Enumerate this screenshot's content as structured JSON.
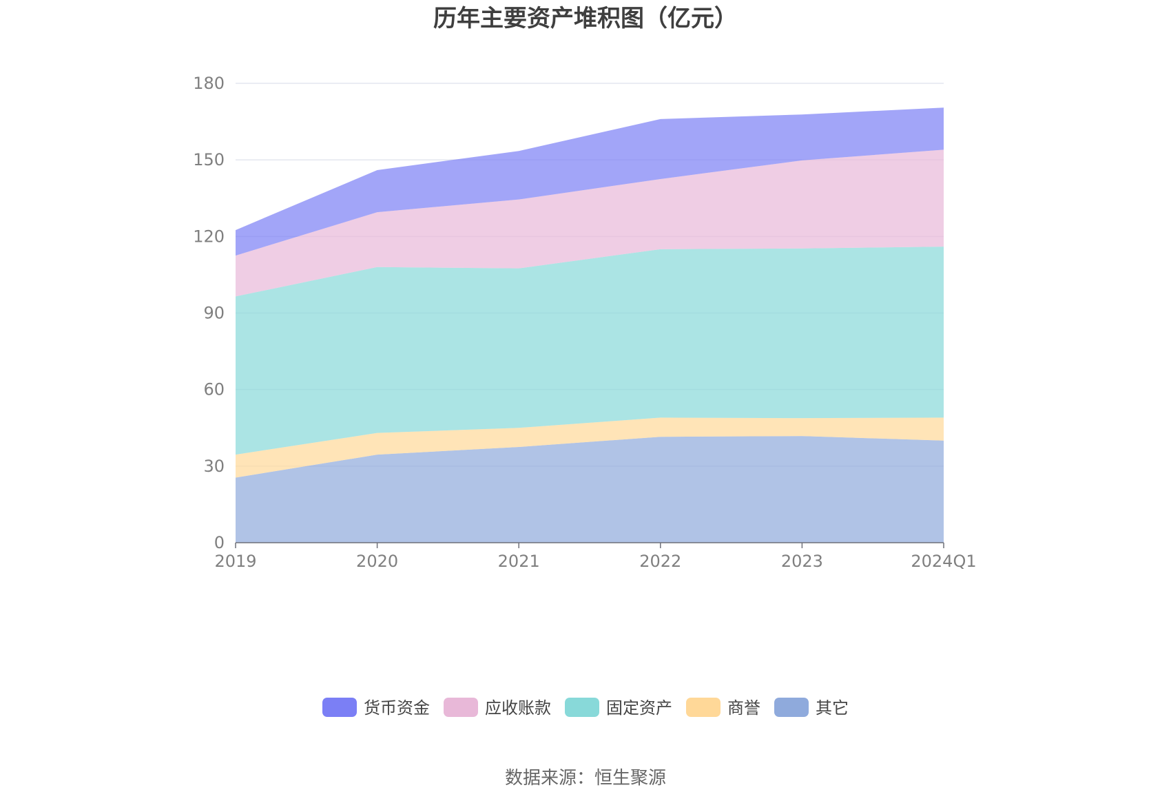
{
  "chart_data": {
    "type": "area",
    "stacked": true,
    "title": "历年主要资产堆积图（亿元）",
    "x": [
      "2019",
      "2020",
      "2021",
      "2022",
      "2023",
      "2024Q1"
    ],
    "ylim": [
      0,
      180
    ],
    "yticks": [
      0,
      30,
      60,
      90,
      120,
      150,
      180
    ],
    "grid": true,
    "legend_position": "bottom",
    "series": [
      {
        "name": "其它",
        "color": "#8faadc",
        "values": [
          25.5,
          34.5,
          37.5,
          41.5,
          41.8,
          40.0
        ]
      },
      {
        "name": "商誉",
        "color": "#ffd898",
        "values": [
          9.0,
          8.5,
          7.5,
          7.5,
          7.0,
          9.0
        ]
      },
      {
        "name": "固定资产",
        "color": "#88d9d9",
        "values": [
          62.0,
          65.0,
          62.5,
          66.0,
          66.5,
          67.0
        ]
      },
      {
        "name": "应收账款",
        "color": "#e8b8d8",
        "values": [
          16.0,
          21.5,
          27.0,
          27.5,
          34.5,
          38.0
        ]
      },
      {
        "name": "货币资金",
        "color": "#7b7ff5",
        "values": [
          10.0,
          16.5,
          19.0,
          23.5,
          18.0,
          16.5
        ]
      }
    ],
    "legend_order": [
      "货币资金",
      "应收账款",
      "固定资产",
      "商誉",
      "其它"
    ]
  },
  "source_text": "数据来源：恒生聚源"
}
